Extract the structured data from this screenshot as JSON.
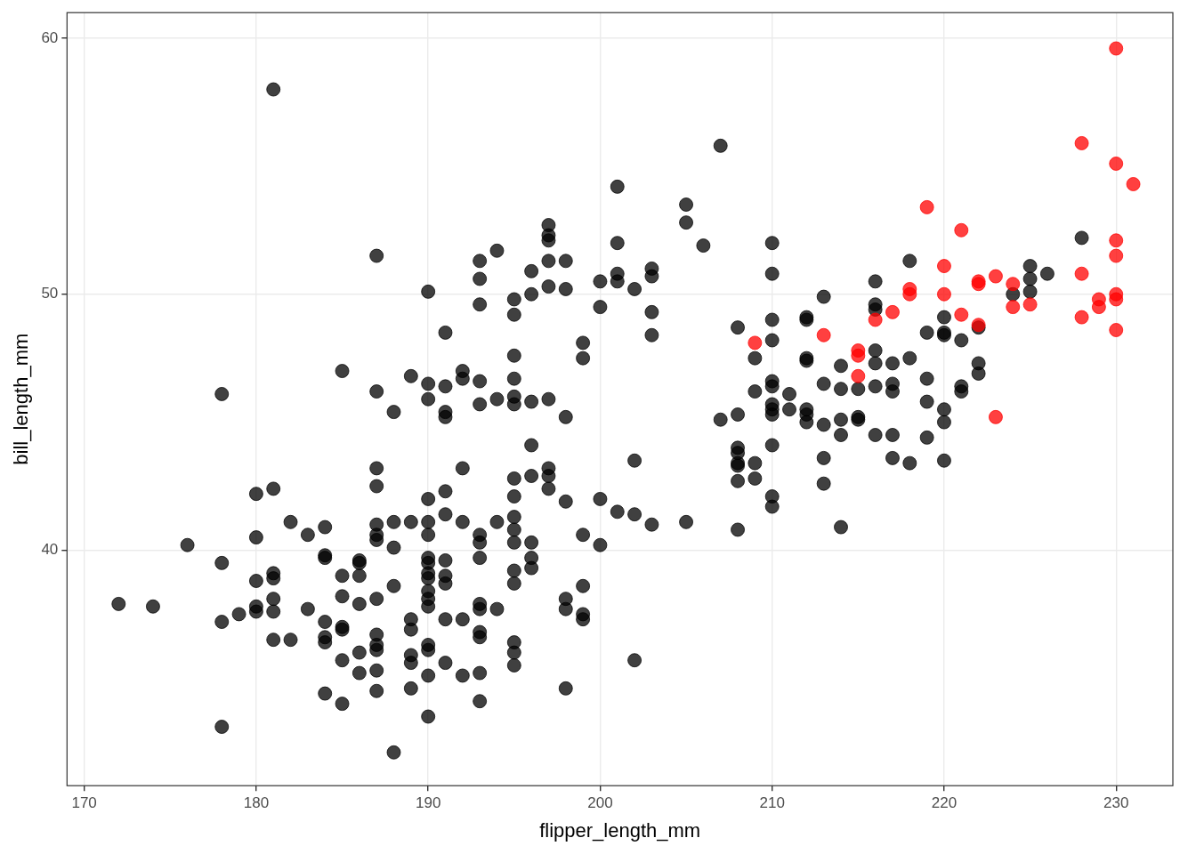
{
  "chart_data": {
    "type": "scatter",
    "x_label": "flipper_length_mm",
    "y_label": "bill_length_mm",
    "xlim": [
      169,
      233.3
    ],
    "ylim": [
      30.8,
      61.0
    ],
    "xticks": [
      170,
      180,
      190,
      200,
      210,
      220,
      230
    ],
    "yticks": [
      40,
      50,
      60
    ],
    "grid": true,
    "series": [
      {
        "color": "black",
        "points": [
          [
            181,
            58.0
          ],
          [
            207,
            55.8
          ],
          [
            201,
            54.2
          ],
          [
            205,
            53.5
          ],
          [
            205,
            52.8
          ],
          [
            197,
            52.7
          ],
          [
            197,
            52.3
          ],
          [
            197,
            52.1
          ],
          [
            206,
            51.9
          ],
          [
            201,
            52.0
          ],
          [
            210,
            52.0
          ],
          [
            228,
            52.2
          ],
          [
            194,
            51.7
          ],
          [
            193,
            51.3
          ],
          [
            187,
            51.5
          ],
          [
            197,
            51.3
          ],
          [
            198,
            51.3
          ],
          [
            203,
            51.0
          ],
          [
            225,
            51.1
          ],
          [
            218,
            51.3
          ],
          [
            196,
            50.9
          ],
          [
            210,
            50.8
          ],
          [
            201,
            50.8
          ],
          [
            226,
            50.8
          ],
          [
            225,
            50.6
          ],
          [
            201,
            50.5
          ],
          [
            200,
            50.5
          ],
          [
            202,
            50.2
          ],
          [
            203,
            50.7
          ],
          [
            216,
            50.5
          ],
          [
            190,
            50.1
          ],
          [
            193,
            50.6
          ],
          [
            195,
            49.8
          ],
          [
            197,
            50.3
          ],
          [
            196,
            50.0
          ],
          [
            198,
            50.2
          ],
          [
            224,
            50.0
          ],
          [
            225,
            50.1
          ],
          [
            213,
            49.9
          ],
          [
            200,
            49.5
          ],
          [
            193,
            49.6
          ],
          [
            203,
            49.3
          ],
          [
            195,
            49.2
          ],
          [
            212,
            49.0
          ],
          [
            212,
            49.1
          ],
          [
            210,
            49.0
          ],
          [
            220,
            49.1
          ],
          [
            216,
            49.6
          ],
          [
            216,
            49.4
          ],
          [
            222,
            48.7
          ],
          [
            208,
            48.7
          ],
          [
            220,
            48.5
          ],
          [
            220,
            48.4
          ],
          [
            219,
            48.5
          ],
          [
            210,
            48.2
          ],
          [
            221,
            48.2
          ],
          [
            191,
            48.5
          ],
          [
            203,
            48.4
          ],
          [
            199,
            48.1
          ],
          [
            199,
            47.5
          ],
          [
            209,
            47.5
          ],
          [
            212,
            47.5
          ],
          [
            212,
            47.4
          ],
          [
            222,
            47.3
          ],
          [
            216,
            47.3
          ],
          [
            218,
            47.5
          ],
          [
            214,
            47.2
          ],
          [
            217,
            47.3
          ],
          [
            216,
            47.8
          ],
          [
            195,
            47.6
          ],
          [
            185,
            47.0
          ],
          [
            192,
            47.0
          ],
          [
            192,
            46.7
          ],
          [
            195,
            46.7
          ],
          [
            193,
            46.6
          ],
          [
            189,
            46.8
          ],
          [
            222,
            46.9
          ],
          [
            219,
            46.7
          ],
          [
            214,
            46.3
          ],
          [
            215,
            46.3
          ],
          [
            217,
            46.5
          ],
          [
            217,
            46.2
          ],
          [
            210,
            46.6
          ],
          [
            210,
            46.4
          ],
          [
            213,
            46.5
          ],
          [
            209,
            46.2
          ],
          [
            211,
            46.1
          ],
          [
            216,
            46.4
          ],
          [
            221,
            46.4
          ],
          [
            221,
            46.2
          ],
          [
            219,
            45.8
          ],
          [
            178,
            46.1
          ],
          [
            187,
            46.2
          ],
          [
            190,
            46.5
          ],
          [
            190,
            45.9
          ],
          [
            191,
            46.4
          ],
          [
            191,
            45.4
          ],
          [
            191,
            45.2
          ],
          [
            196,
            45.8
          ],
          [
            197,
            45.9
          ],
          [
            194,
            45.9
          ],
          [
            195,
            46.0
          ],
          [
            193,
            45.7
          ],
          [
            195,
            45.7
          ],
          [
            188,
            45.4
          ],
          [
            198,
            45.2
          ],
          [
            210,
            45.7
          ],
          [
            210,
            45.5
          ],
          [
            210,
            45.3
          ],
          [
            211,
            45.5
          ],
          [
            212,
            45.5
          ],
          [
            212,
            45.3
          ],
          [
            212,
            45.0
          ],
          [
            213,
            44.9
          ],
          [
            214,
            45.1
          ],
          [
            215,
            45.2
          ],
          [
            215,
            45.1
          ],
          [
            220,
            45.0
          ],
          [
            220,
            45.5
          ],
          [
            217,
            44.5
          ],
          [
            219,
            44.4
          ],
          [
            216,
            44.5
          ],
          [
            214,
            44.5
          ],
          [
            196,
            44.1
          ],
          [
            210,
            44.1
          ],
          [
            208,
            44.0
          ],
          [
            208,
            43.8
          ],
          [
            208,
            43.4
          ],
          [
            208,
            43.3
          ],
          [
            209,
            43.4
          ],
          [
            207,
            45.1
          ],
          [
            208,
            45.3
          ],
          [
            213,
            43.6
          ],
          [
            213,
            42.6
          ],
          [
            217,
            43.6
          ],
          [
            218,
            43.4
          ],
          [
            220,
            43.5
          ],
          [
            202,
            43.5
          ],
          [
            192,
            43.2
          ],
          [
            187,
            43.2
          ],
          [
            208,
            42.7
          ],
          [
            209,
            42.8
          ],
          [
            210,
            42.1
          ],
          [
            210,
            41.7
          ],
          [
            214,
            40.9
          ],
          [
            208,
            40.8
          ],
          [
            205,
            41.1
          ],
          [
            203,
            41.0
          ],
          [
            202,
            41.4
          ],
          [
            201,
            41.5
          ],
          [
            200,
            42.0
          ],
          [
            200,
            40.2
          ],
          [
            199,
            40.6
          ],
          [
            202,
            35.7
          ],
          [
            172,
            37.9
          ],
          [
            174,
            37.8
          ],
          [
            176,
            40.2
          ],
          [
            178,
            39.5
          ],
          [
            178,
            37.2
          ],
          [
            178,
            33.1
          ],
          [
            179,
            37.5
          ],
          [
            180,
            42.2
          ],
          [
            180,
            40.5
          ],
          [
            180,
            38.8
          ],
          [
            180,
            37.8
          ],
          [
            180,
            37.6
          ],
          [
            181,
            42.4
          ],
          [
            181,
            39.1
          ],
          [
            181,
            38.9
          ],
          [
            181,
            38.1
          ],
          [
            181,
            37.6
          ],
          [
            181,
            36.5
          ],
          [
            182,
            41.1
          ],
          [
            182,
            36.5
          ],
          [
            183,
            40.6
          ],
          [
            183,
            37.7
          ],
          [
            184,
            40.9
          ],
          [
            184,
            39.8
          ],
          [
            184,
            39.7
          ],
          [
            184,
            37.2
          ],
          [
            184,
            36.6
          ],
          [
            184,
            36.4
          ],
          [
            184,
            34.4
          ],
          [
            185,
            39.0
          ],
          [
            185,
            38.2
          ],
          [
            185,
            37.0
          ],
          [
            185,
            36.9
          ],
          [
            185,
            35.7
          ],
          [
            185,
            34.0
          ],
          [
            186,
            39.6
          ],
          [
            186,
            39.5
          ],
          [
            186,
            39.0
          ],
          [
            186,
            37.9
          ],
          [
            186,
            36.0
          ],
          [
            186,
            35.2
          ],
          [
            187,
            42.5
          ],
          [
            187,
            41.0
          ],
          [
            187,
            40.6
          ],
          [
            187,
            40.4
          ],
          [
            187,
            38.1
          ],
          [
            187,
            36.7
          ],
          [
            187,
            36.3
          ],
          [
            187,
            36.1
          ],
          [
            187,
            35.3
          ],
          [
            187,
            34.5
          ],
          [
            188,
            41.1
          ],
          [
            188,
            40.1
          ],
          [
            188,
            38.6
          ],
          [
            188,
            32.1
          ],
          [
            189,
            41.1
          ],
          [
            189,
            37.3
          ],
          [
            189,
            36.9
          ],
          [
            189,
            35.9
          ],
          [
            189,
            35.6
          ],
          [
            189,
            34.6
          ],
          [
            190,
            42.0
          ],
          [
            190,
            41.1
          ],
          [
            190,
            40.6
          ],
          [
            190,
            39.7
          ],
          [
            190,
            39.5
          ],
          [
            190,
            39.1
          ],
          [
            190,
            38.9
          ],
          [
            190,
            38.4
          ],
          [
            190,
            38.1
          ],
          [
            190,
            37.8
          ],
          [
            190,
            36.3
          ],
          [
            190,
            36.1
          ],
          [
            190,
            35.1
          ],
          [
            190,
            33.5
          ],
          [
            191,
            42.3
          ],
          [
            191,
            41.4
          ],
          [
            191,
            39.6
          ],
          [
            191,
            39.0
          ],
          [
            191,
            38.7
          ],
          [
            191,
            37.3
          ],
          [
            191,
            35.6
          ],
          [
            192,
            41.1
          ],
          [
            192,
            37.3
          ],
          [
            192,
            35.1
          ],
          [
            193,
            40.6
          ],
          [
            193,
            40.3
          ],
          [
            193,
            39.7
          ],
          [
            193,
            37.9
          ],
          [
            193,
            37.7
          ],
          [
            193,
            36.8
          ],
          [
            193,
            36.6
          ],
          [
            193,
            35.2
          ],
          [
            193,
            34.1
          ],
          [
            194,
            41.1
          ],
          [
            194,
            37.7
          ],
          [
            195,
            42.8
          ],
          [
            195,
            42.1
          ],
          [
            195,
            41.3
          ],
          [
            195,
            40.8
          ],
          [
            195,
            40.3
          ],
          [
            195,
            39.2
          ],
          [
            195,
            38.7
          ],
          [
            195,
            36.4
          ],
          [
            195,
            36.0
          ],
          [
            195,
            35.5
          ],
          [
            196,
            42.9
          ],
          [
            196,
            40.3
          ],
          [
            196,
            39.7
          ],
          [
            196,
            39.3
          ],
          [
            197,
            43.2
          ],
          [
            197,
            42.9
          ],
          [
            197,
            42.4
          ],
          [
            198,
            41.9
          ],
          [
            198,
            38.1
          ],
          [
            198,
            37.7
          ],
          [
            198,
            34.6
          ],
          [
            199,
            38.6
          ],
          [
            199,
            37.5
          ],
          [
            199,
            37.3
          ]
        ]
      },
      {
        "color": "red",
        "points": [
          [
            230,
            59.6
          ],
          [
            228,
            55.9
          ],
          [
            230,
            55.1
          ],
          [
            231,
            54.3
          ],
          [
            219,
            53.4
          ],
          [
            221,
            52.5
          ],
          [
            230,
            52.1
          ],
          [
            230,
            51.5
          ],
          [
            220,
            51.1
          ],
          [
            228,
            50.8
          ],
          [
            218,
            50.2
          ],
          [
            218,
            50.0
          ],
          [
            220,
            50.0
          ],
          [
            222,
            50.5
          ],
          [
            222,
            50.4
          ],
          [
            223,
            50.7
          ],
          [
            224,
            50.4
          ],
          [
            230,
            50.0
          ],
          [
            230,
            49.8
          ],
          [
            224,
            49.5
          ],
          [
            225,
            49.6
          ],
          [
            229,
            49.8
          ],
          [
            229,
            49.5
          ],
          [
            228,
            49.1
          ],
          [
            221,
            49.2
          ],
          [
            217,
            49.3
          ],
          [
            216,
            49.0
          ],
          [
            222,
            48.8
          ],
          [
            230,
            48.6
          ],
          [
            209,
            48.1
          ],
          [
            213,
            48.4
          ],
          [
            215,
            47.8
          ],
          [
            215,
            47.6
          ],
          [
            215,
            46.8
          ],
          [
            223,
            45.2
          ]
        ]
      }
    ]
  }
}
